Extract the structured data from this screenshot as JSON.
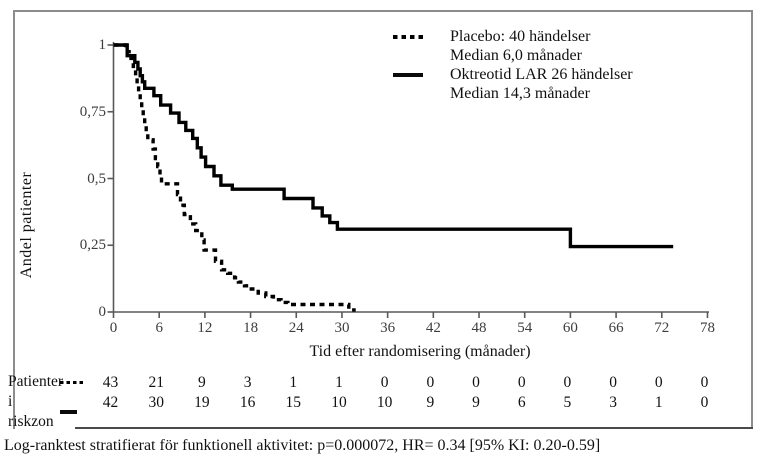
{
  "figure": {
    "y_axis_label": "Andel patienter",
    "x_axis_label": "Tid efter randomisering (månader)",
    "footer": "Log-ranktest stratifierat för funktionell aktivitet: p=0.000072, HR= 0.34 [95% KI: 0.20-0.59]"
  },
  "legend": {
    "items": [
      {
        "style": "dotted",
        "lines": [
          "Placebo: 40 händelser",
          "Median 6,0 månader"
        ]
      },
      {
        "style": "solid",
        "lines": [
          "Oktreotid LAR 26 händelser",
          "Median 14,3 månader"
        ]
      }
    ]
  },
  "risk_table": {
    "label_line1": "Patienter",
    "label_line2": "i riskzon",
    "rows": [
      {
        "series": "Placebo",
        "marker": "dotted",
        "counts": [
          43,
          21,
          9,
          3,
          1,
          1,
          0,
          0,
          0,
          0,
          0,
          0,
          0,
          0
        ]
      },
      {
        "series": "Oktreotid LAR",
        "marker": "solid",
        "counts": [
          42,
          30,
          19,
          16,
          15,
          10,
          10,
          9,
          9,
          6,
          5,
          3,
          1,
          0
        ]
      }
    ]
  },
  "colors": {
    "curve": "#000000",
    "axis": "#595959",
    "tick_text": "#3d3d3d",
    "border": "#8c8c8c"
  },
  "chart_data": {
    "type": "line",
    "subtype": "kaplan-meier-step",
    "title": "",
    "xlabel": "Tid efter randomisering (månader)",
    "ylabel": "Andel patienter",
    "xlim": [
      0,
      78
    ],
    "ylim": [
      0,
      1
    ],
    "grid": false,
    "legend_position": "top-right",
    "xticks": [
      0,
      6,
      12,
      18,
      24,
      30,
      36,
      42,
      48,
      54,
      60,
      66,
      72,
      78
    ],
    "yticks": [
      {
        "v": 0,
        "label": "0"
      },
      {
        "v": 0.25,
        "label": "0,25"
      },
      {
        "v": 0.5,
        "label": "0,5"
      },
      {
        "v": 0.75,
        "label": "0,75"
      },
      {
        "v": 1,
        "label": "1"
      }
    ],
    "series": [
      {
        "name": "Placebo",
        "events": 40,
        "median_months": 6.0,
        "line": "dotted",
        "end_x": 31.8,
        "points": [
          [
            0,
            1.0
          ],
          [
            1.6,
            0.975
          ],
          [
            2.3,
            0.95
          ],
          [
            2.6,
            0.92
          ],
          [
            2.9,
            0.885
          ],
          [
            3.1,
            0.855
          ],
          [
            3.3,
            0.825
          ],
          [
            3.5,
            0.795
          ],
          [
            3.7,
            0.765
          ],
          [
            3.9,
            0.735
          ],
          [
            4.1,
            0.7
          ],
          [
            4.3,
            0.67
          ],
          [
            4.5,
            0.645
          ],
          [
            5.2,
            0.61
          ],
          [
            5.5,
            0.575
          ],
          [
            5.8,
            0.545
          ],
          [
            6.1,
            0.51
          ],
          [
            6.3,
            0.48
          ],
          [
            8.4,
            0.44
          ],
          [
            8.8,
            0.4
          ],
          [
            9.3,
            0.365
          ],
          [
            10.1,
            0.33
          ],
          [
            10.8,
            0.305
          ],
          [
            11.6,
            0.27
          ],
          [
            11.9,
            0.232
          ],
          [
            13.4,
            0.19
          ],
          [
            14.2,
            0.158
          ],
          [
            15.0,
            0.145
          ],
          [
            15.9,
            0.128
          ],
          [
            16.4,
            0.112
          ],
          [
            17.2,
            0.098
          ],
          [
            18.1,
            0.086
          ],
          [
            19.0,
            0.071
          ],
          [
            20.0,
            0.058
          ],
          [
            21.0,
            0.046
          ],
          [
            22.0,
            0.036
          ],
          [
            22.9,
            0.028
          ],
          [
            30.9,
            0.008
          ]
        ]
      },
      {
        "name": "Oktreotid LAR",
        "events": 26,
        "median_months": 14.3,
        "line": "solid",
        "end_x": 73.5,
        "points": [
          [
            0,
            1.0
          ],
          [
            1.8,
            0.96
          ],
          [
            2.8,
            0.935
          ],
          [
            3.2,
            0.91
          ],
          [
            3.5,
            0.885
          ],
          [
            3.8,
            0.862
          ],
          [
            4.1,
            0.838
          ],
          [
            5.3,
            0.81
          ],
          [
            6.2,
            0.775
          ],
          [
            7.5,
            0.745
          ],
          [
            8.6,
            0.71
          ],
          [
            9.5,
            0.68
          ],
          [
            10.4,
            0.65
          ],
          [
            11.0,
            0.615
          ],
          [
            11.5,
            0.58
          ],
          [
            12.1,
            0.545
          ],
          [
            13.2,
            0.51
          ],
          [
            14.1,
            0.475
          ],
          [
            15.6,
            0.46
          ],
          [
            22.4,
            0.425
          ],
          [
            26.2,
            0.39
          ],
          [
            27.4,
            0.36
          ],
          [
            28.4,
            0.335
          ],
          [
            29.4,
            0.31
          ],
          [
            60,
            0.245
          ]
        ]
      }
    ]
  }
}
